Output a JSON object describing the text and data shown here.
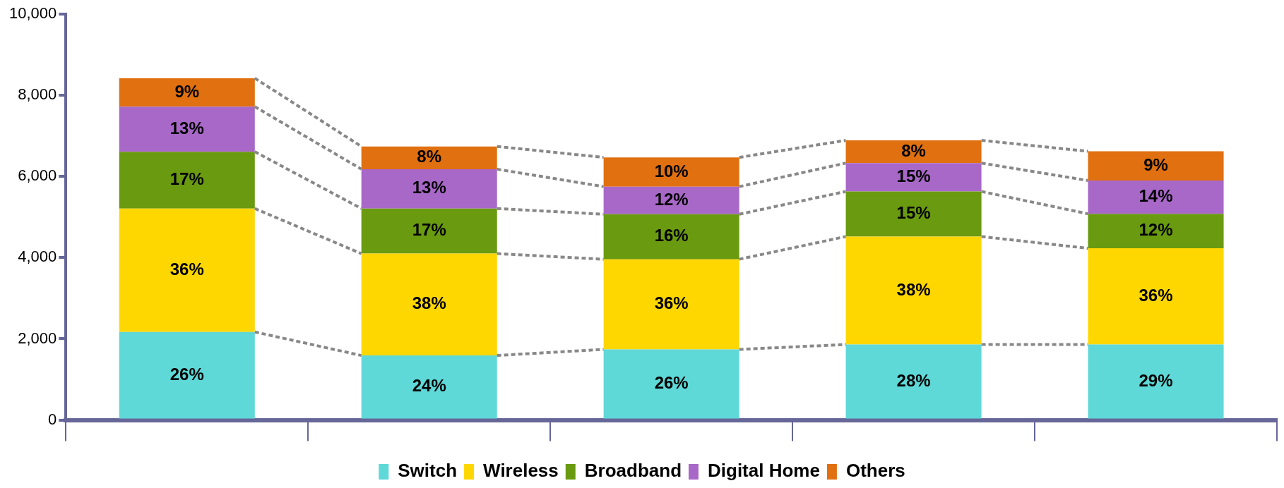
{
  "chart_data": {
    "type": "bar",
    "stacked": true,
    "categories": [
      null,
      null,
      null,
      null,
      null
    ],
    "series": [
      {
        "name": "Switch",
        "color": "#5fd8d8",
        "values": [
          2170,
          1590,
          1740,
          1860,
          1860
        ]
      },
      {
        "name": "Wireless",
        "color": "#ffd700",
        "values": [
          3040,
          2510,
          2220,
          2660,
          2370
        ]
      },
      {
        "name": "Broadband",
        "color": "#6a9a10",
        "values": [
          1400,
          1110,
          1110,
          1110,
          850
        ]
      },
      {
        "name": "Digital Home",
        "color": "#a868c8",
        "values": [
          1110,
          970,
          680,
          700,
          820
        ]
      },
      {
        "name": "Others",
        "color": "#e07010",
        "values": [
          700,
          560,
          720,
          560,
          720
        ]
      }
    ],
    "annotations": [
      "26%",
      "24%",
      "26%",
      "28%",
      "29%",
      "36%",
      "38%",
      "36%",
      "38%",
      "36%",
      "17%",
      "17%",
      "16%",
      "15%",
      "12%",
      "13%",
      "13%",
      "12%",
      "15%",
      "14%",
      "9%",
      "8%",
      "10%",
      "8%",
      "9%"
    ],
    "ylim": [
      0,
      10000
    ],
    "yticks": [
      0,
      {
        "value": 2000,
        "label": "2,000"
      },
      {
        "value": 4000,
        "label": "4,000"
      },
      {
        "value": 6000,
        "label": "6,000"
      },
      {
        "value": 8000,
        "label": "8,000"
      },
      {
        "value": 10000,
        "label": "10,000"
      }
    ],
    "grid": false,
    "legend": "bottom"
  }
}
